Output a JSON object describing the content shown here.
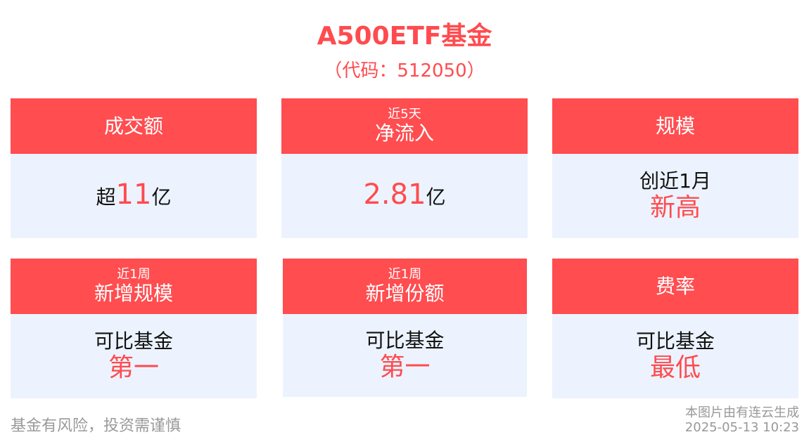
{
  "header": {
    "title": "A500ETF基金",
    "subtitle": "（代码：512050）"
  },
  "colors": {
    "accent": "#ff4d50",
    "card_body": "#ecf3fe",
    "muted": "#999999"
  },
  "cards": [
    {
      "small": "",
      "label": "成交额",
      "prefix": "超",
      "value": "11",
      "suffix": "亿"
    },
    {
      "small": "近5天",
      "label": "净流入",
      "prefix": "",
      "value": "2.81",
      "suffix": "亿"
    },
    {
      "small": "",
      "label": "规模",
      "line1": "创近1月",
      "line2": "新高"
    },
    {
      "small": "近1周",
      "label": "新增规模",
      "line1": "可比基金",
      "line2": "第一"
    },
    {
      "small": "近1周",
      "label": "新增份额",
      "line1": "可比基金",
      "line2": "第一"
    },
    {
      "small": "",
      "label": "费率",
      "line1": "可比基金",
      "line2": "最低"
    }
  ],
  "footer": {
    "disclaimer": "基金有风险，投资需谨慎",
    "source": "本图片由有连云生成",
    "timestamp": "2025-05-13 10:23"
  }
}
